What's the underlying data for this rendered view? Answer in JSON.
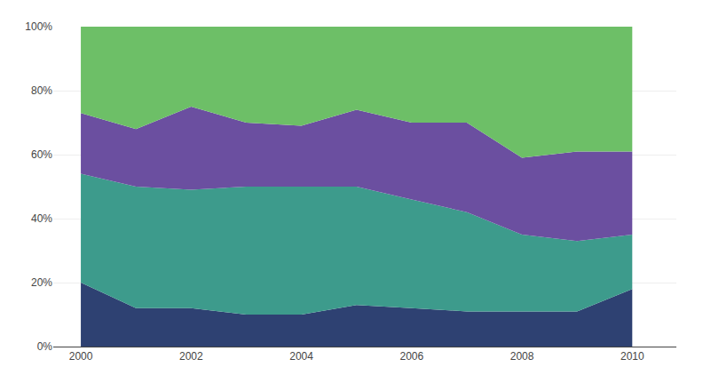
{
  "chart_data": {
    "type": "area",
    "stacked": true,
    "x": [
      2000,
      2001,
      2002,
      2003,
      2004,
      2005,
      2006,
      2007,
      2008,
      2009,
      2010
    ],
    "series": [
      {
        "color": "#2e4172",
        "values": [
          20,
          12,
          12,
          10,
          10,
          13,
          12,
          11,
          11,
          11,
          18
        ]
      },
      {
        "color": "#3d9b8c",
        "values": [
          34,
          38,
          37,
          40,
          40,
          37,
          34,
          31,
          24,
          22,
          17
        ]
      },
      {
        "color": "#6b4fa0",
        "values": [
          19,
          18,
          26,
          20,
          19,
          24,
          24,
          28,
          24,
          28,
          26
        ]
      },
      {
        "color": "#6dbf67",
        "values": [
          27,
          32,
          25,
          30,
          31,
          26,
          30,
          30,
          41,
          39,
          39
        ]
      }
    ],
    "xlim": [
      1999.5,
      2010.8
    ],
    "xticks": [
      2000,
      2002,
      2004,
      2006,
      2008,
      2010
    ],
    "ylim": [
      0,
      100
    ],
    "yticks": [
      {
        "value": 0,
        "label": "0%"
      },
      {
        "value": 20,
        "label": "20%"
      },
      {
        "value": 40,
        "label": "40%"
      },
      {
        "value": 60,
        "label": "60%"
      },
      {
        "value": 80,
        "label": "80%"
      },
      {
        "value": 100,
        "label": "100%"
      }
    ],
    "grid": "y"
  }
}
